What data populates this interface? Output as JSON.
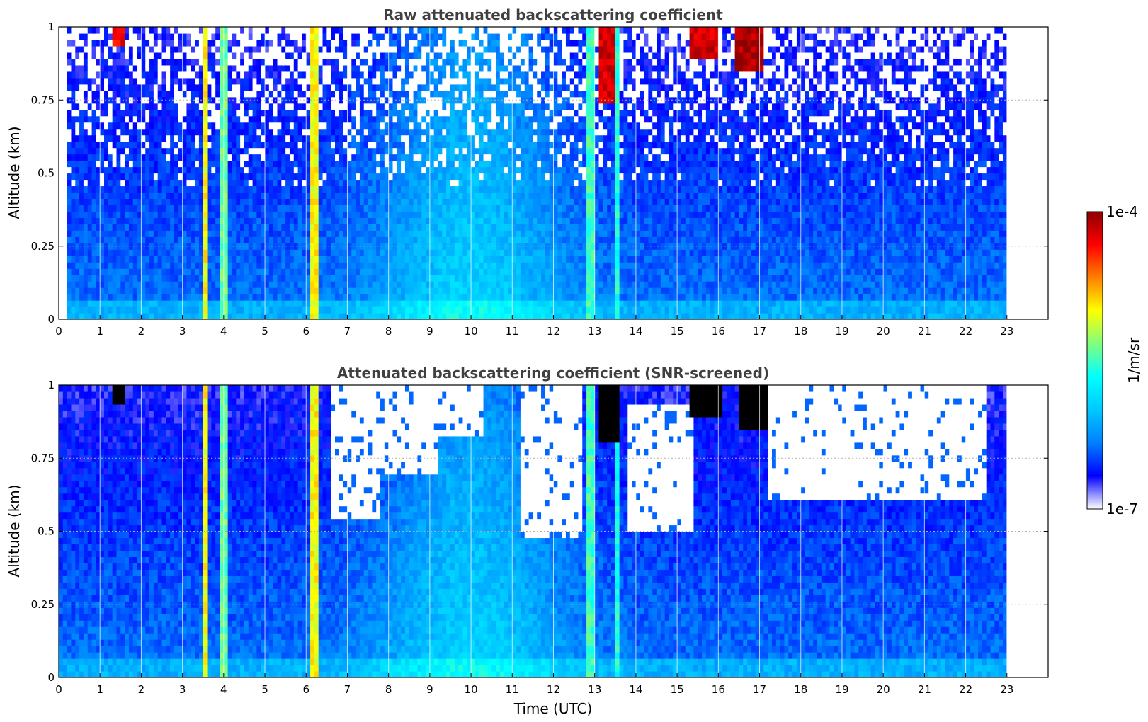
{
  "colormap": [
    "#ffffff",
    "#0000ff",
    "#0080ff",
    "#00c8ff",
    "#00ffff",
    "#7fff80",
    "#ffff00",
    "#ff8000",
    "#ff0000",
    "#8b0000"
  ],
  "colors": {
    "missing": "#ffffff",
    "saturated": "#000000",
    "frame": "#000000",
    "grid": "#b0b0b0",
    "title": "#404040"
  },
  "colorbar": {
    "max_label": "1e-4",
    "min_label": "1e-7",
    "label": "1/m/sr",
    "scale": "log"
  },
  "chart_data": [
    {
      "type": "heatmap",
      "title": "Raw attenuated backscattering coefficient",
      "xlabel": "",
      "ylabel": "Altitude (km)",
      "xlim": [
        0,
        24
      ],
      "ylim": [
        0,
        1
      ],
      "x_ticks": [
        "0",
        "1",
        "2",
        "3",
        "4",
        "5",
        "6",
        "7",
        "8",
        "9",
        "10",
        "11",
        "12",
        "13",
        "14",
        "15",
        "16",
        "17",
        "18",
        "19",
        "20",
        "21",
        "22",
        "23"
      ],
      "y_ticks": [
        "0",
        "0.25",
        "0.5",
        "0.75",
        "1"
      ],
      "data_end_time": 23,
      "grid": true,
      "value_units": "1/m/sr",
      "log_value_range": [
        -7,
        -4
      ],
      "clouds": [
        {
          "t_start": 3.5,
          "t_end": 3.65,
          "alt_base": 0.0,
          "alt_top": 1.0,
          "log_intensity": -5.0
        },
        {
          "t_start": 3.9,
          "t_end": 4.1,
          "alt_base": 0.0,
          "alt_top": 1.0,
          "log_intensity": -5.4
        },
        {
          "t_start": 6.1,
          "t_end": 6.35,
          "alt_base": 0.0,
          "alt_top": 1.0,
          "log_intensity": -5.0
        },
        {
          "t_start": 12.8,
          "t_end": 13.0,
          "alt_base": 0.0,
          "alt_top": 1.0,
          "log_intensity": -5.5
        },
        {
          "t_start": 13.5,
          "t_end": 13.65,
          "alt_base": 0.0,
          "alt_top": 1.0,
          "log_intensity": -5.6
        },
        {
          "t_start": 13.1,
          "t_end": 13.6,
          "alt_base": 0.75,
          "alt_top": 1.0,
          "log_intensity": -4.2
        },
        {
          "t_start": 1.35,
          "t_end": 1.6,
          "alt_base": 0.93,
          "alt_top": 1.0,
          "log_intensity": -4.3
        },
        {
          "t_start": 15.3,
          "t_end": 16.0,
          "alt_base": 0.9,
          "alt_top": 1.0,
          "log_intensity": -4.2
        },
        {
          "t_start": 16.4,
          "t_end": 17.1,
          "alt_base": 0.85,
          "alt_top": 1.0,
          "log_intensity": -4.1
        }
      ],
      "white_gaps": [
        {
          "t_start": 0.0,
          "t_end": 0.25,
          "alt_base": 0.0,
          "alt_top": 1.0
        }
      ]
    },
    {
      "type": "heatmap",
      "title": "Attenuated backscattering coefficient (SNR-screened)",
      "xlabel": "Time (UTC)",
      "ylabel": "Altitude (km)",
      "xlim": [
        0,
        24
      ],
      "ylim": [
        0,
        1
      ],
      "x_ticks": [
        "0",
        "1",
        "2",
        "3",
        "4",
        "5",
        "6",
        "7",
        "8",
        "9",
        "10",
        "11",
        "12",
        "13",
        "14",
        "15",
        "16",
        "17",
        "18",
        "19",
        "20",
        "21",
        "22",
        "23"
      ],
      "y_ticks": [
        "0",
        "0.25",
        "0.5",
        "0.75",
        "1"
      ],
      "data_end_time": 23,
      "grid": true,
      "value_units": "1/m/sr",
      "log_value_range": [
        -7,
        -4
      ],
      "clouds": [
        {
          "t_start": 3.5,
          "t_end": 3.65,
          "alt_base": 0.0,
          "alt_top": 1.0,
          "log_intensity": -5.0
        },
        {
          "t_start": 3.9,
          "t_end": 4.1,
          "alt_base": 0.0,
          "alt_top": 1.0,
          "log_intensity": -5.4
        },
        {
          "t_start": 6.1,
          "t_end": 6.35,
          "alt_base": 0.0,
          "alt_top": 1.0,
          "log_intensity": -5.0
        },
        {
          "t_start": 12.8,
          "t_end": 13.0,
          "alt_base": 0.0,
          "alt_top": 1.0,
          "log_intensity": -5.5
        },
        {
          "t_start": 13.5,
          "t_end": 13.65,
          "alt_base": 0.0,
          "alt_top": 1.0,
          "log_intensity": -5.6
        }
      ],
      "saturated_regions": [
        {
          "t_start": 13.1,
          "t_end": 13.6,
          "alt_base": 0.8,
          "alt_top": 1.0
        },
        {
          "t_start": 1.35,
          "t_end": 1.6,
          "alt_base": 0.93,
          "alt_top": 1.0
        },
        {
          "t_start": 15.3,
          "t_end": 16.1,
          "alt_base": 0.9,
          "alt_top": 1.0
        },
        {
          "t_start": 16.5,
          "t_end": 17.2,
          "alt_base": 0.85,
          "alt_top": 1.0
        }
      ],
      "screened_regions": [
        {
          "t_start": 6.6,
          "t_end": 7.8,
          "alt_base": 0.55,
          "alt_top": 1.0
        },
        {
          "t_start": 7.8,
          "t_end": 9.2,
          "alt_base": 0.7,
          "alt_top": 1.0
        },
        {
          "t_start": 9.2,
          "t_end": 10.3,
          "alt_base": 0.82,
          "alt_top": 1.0
        },
        {
          "t_start": 11.2,
          "t_end": 12.7,
          "alt_base": 0.47,
          "alt_top": 1.0
        },
        {
          "t_start": 13.8,
          "t_end": 15.4,
          "alt_base": 0.5,
          "alt_top": 0.93
        },
        {
          "t_start": 17.2,
          "t_end": 22.5,
          "alt_base": 0.6,
          "alt_top": 1.0
        }
      ],
      "white_gaps": [
        {
          "t_start": 0.0,
          "t_end": 0.05,
          "alt_base": 0.0,
          "alt_top": 1.0
        }
      ]
    }
  ]
}
